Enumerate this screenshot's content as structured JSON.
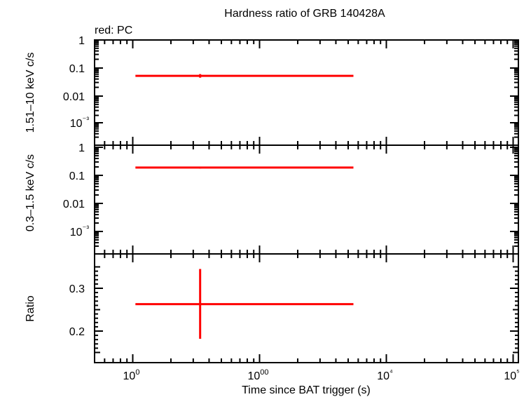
{
  "title": "Hardness ratio of GRB 140428A",
  "legend": "red: PC",
  "xlabel": "Time since BAT trigger (s)",
  "colors": {
    "series": "#ff0000",
    "axes": "#000000"
  },
  "chart_data": [
    {
      "type": "scatter",
      "ylabel": "1.51–10 keV c/s",
      "xscale": "log",
      "yscale": "log",
      "xlim": [
        50,
        110000
      ],
      "ylim": [
        0.0003,
        1
      ],
      "yticks": [
        "1",
        "0.1",
        "0.01",
        "10⁻³"
      ],
      "series": [
        {
          "name": "PC",
          "x": 340,
          "xerr": [
            105,
            5500
          ],
          "y": 0.05,
          "yerr": [
            0.043,
            0.058
          ]
        }
      ]
    },
    {
      "type": "scatter",
      "ylabel": "0.3–1.5 keV c/s",
      "xscale": "log",
      "yscale": "log",
      "xlim": [
        50,
        110000
      ],
      "ylim": [
        0.0003,
        1
      ],
      "yticks": [
        "1",
        "0.1",
        "0.01",
        "10⁻³"
      ],
      "series": [
        {
          "name": "PC",
          "x": 340,
          "xerr": [
            105,
            5500
          ],
          "y": 0.19,
          "yerr": [
            0.175,
            0.205
          ]
        }
      ]
    },
    {
      "type": "scatter",
      "ylabel": "Ratio",
      "xscale": "log",
      "yscale": "linear",
      "xlim": [
        50,
        110000
      ],
      "ylim": [
        0.13,
        0.37
      ],
      "yticks": [
        "0.3",
        "0.2"
      ],
      "xticks": [
        "100",
        "1000",
        "10⁴",
        "10⁵"
      ],
      "series": [
        {
          "name": "PC",
          "x": 340,
          "xerr": [
            105,
            5500
          ],
          "y": 0.263,
          "yerr": [
            0.182,
            0.345
          ]
        }
      ]
    }
  ]
}
